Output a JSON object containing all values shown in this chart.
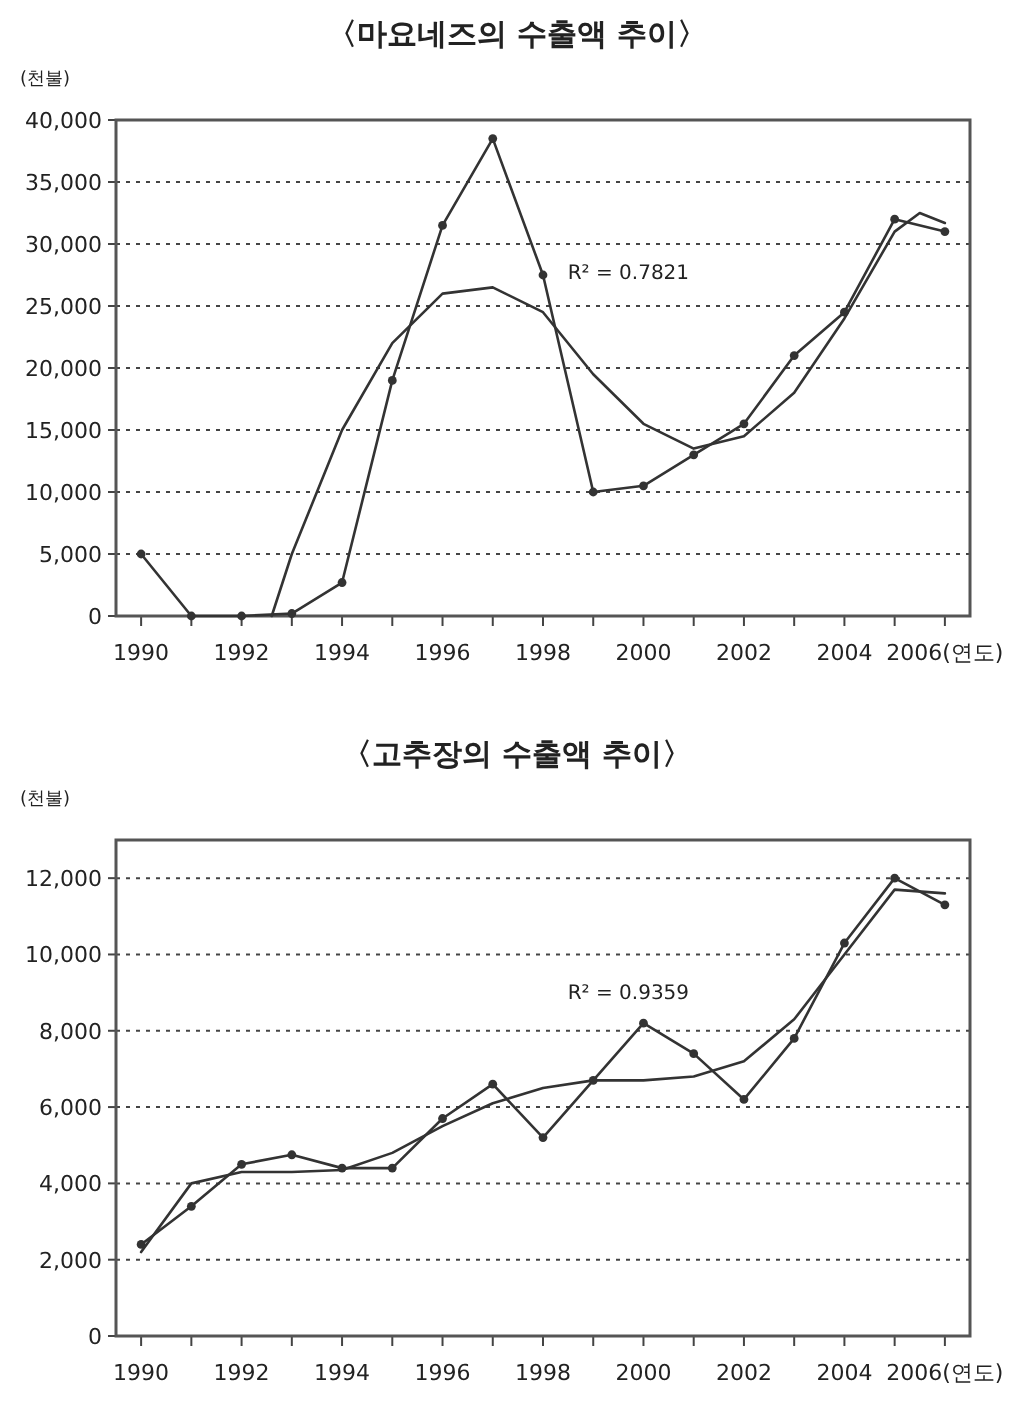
{
  "chart_data": [
    {
      "type": "line",
      "title": "〈마요네즈의 수출액 추이〉",
      "ylabel": "(천불)",
      "x": [
        1990,
        1991,
        1992,
        1993,
        1994,
        1995,
        1996,
        1997,
        1998,
        1999,
        2000,
        2001,
        2002,
        2003,
        2004,
        2005,
        2006
      ],
      "series": [
        {
          "color": "#333333",
          "marker": "circle",
          "values": [
            5000,
            0,
            0,
            200,
            2700,
            19000,
            31500,
            38500,
            27500,
            10000,
            10500,
            13000,
            15500,
            21000,
            24500,
            32000,
            31000
          ]
        },
        {
          "color": "#333333",
          "marker": "none",
          "x": [
            1992.6,
            1993,
            1994,
            1995,
            1996,
            1997,
            1998,
            1999,
            2000,
            2001,
            2002,
            2003,
            2004,
            2005,
            2005.5,
            2006
          ],
          "values": [
            0,
            5000,
            15000,
            22000,
            26000,
            26500,
            24500,
            19500,
            15500,
            13500,
            14500,
            18000,
            24000,
            31000,
            32500,
            31700
          ]
        }
      ],
      "xlim": [
        1989.5,
        2006.5
      ],
      "ylim": [
        0,
        40000
      ],
      "xticks": [
        1990,
        {
          "value": 1991,
          "label": null
        },
        1992,
        {
          "value": 1993,
          "label": null
        },
        1994,
        {
          "value": 1995,
          "label": null
        },
        1996,
        {
          "value": 1997,
          "label": null
        },
        1998,
        {
          "value": 1999,
          "label": null
        },
        2000,
        {
          "value": 2001,
          "label": null
        },
        2002,
        {
          "value": 2003,
          "label": null
        },
        2004,
        {
          "value": 2005,
          "label": null
        },
        {
          "value": 2006,
          "label": "2006(연도)"
        }
      ],
      "yticks": [
        0,
        {
          "value": 5000,
          "label": "5,000"
        },
        {
          "value": 10000,
          "label": "10,000"
        },
        {
          "value": 15000,
          "label": "15,000"
        },
        {
          "value": 20000,
          "label": "20,000"
        },
        {
          "value": 25000,
          "label": "25,000"
        },
        {
          "value": 30000,
          "label": "30,000"
        },
        {
          "value": 35000,
          "label": "35,000"
        },
        {
          "value": 40000,
          "label": "40,000"
        }
      ],
      "grid": "y",
      "line_style": "solid",
      "annotations": [
        "R² = 0.7821"
      ]
    },
    {
      "type": "line",
      "title": "〈고추장의 수출액 추이〉",
      "ylabel": "(천불)",
      "x": [
        1990,
        1991,
        1992,
        1993,
        1994,
        1995,
        1996,
        1997,
        1998,
        1999,
        2000,
        2001,
        2002,
        2003,
        2004,
        2005,
        2006
      ],
      "series": [
        {
          "color": "#333333",
          "marker": "circle",
          "values": [
            2400,
            3400,
            4500,
            4750,
            4400,
            4400,
            5700,
            6600,
            5200,
            6700,
            8200,
            7400,
            6200,
            7800,
            10300,
            12000,
            11300
          ]
        },
        {
          "color": "#333333",
          "marker": "none",
          "values": [
            2200,
            4000,
            4300,
            4300,
            4350,
            4800,
            5500,
            6100,
            6500,
            6700,
            6700,
            6800,
            7200,
            8300,
            10000,
            11700,
            11600
          ]
        }
      ],
      "xlim": [
        1989.5,
        2006.5
      ],
      "ylim": [
        0,
        13000
      ],
      "xticks": [
        1990,
        {
          "value": 1991,
          "label": null
        },
        1992,
        {
          "value": 1993,
          "label": null
        },
        1994,
        {
          "value": 1995,
          "label": null
        },
        1996,
        {
          "value": 1997,
          "label": null
        },
        1998,
        {
          "value": 1999,
          "label": null
        },
        2000,
        {
          "value": 2001,
          "label": null
        },
        2002,
        {
          "value": 2003,
          "label": null
        },
        2004,
        {
          "value": 2005,
          "label": null
        },
        {
          "value": 2006,
          "label": "2006(연도)"
        }
      ],
      "yticks": [
        0,
        {
          "value": 2000,
          "label": "2,000"
        },
        {
          "value": 4000,
          "label": "4,000"
        },
        {
          "value": 6000,
          "label": "6,000"
        },
        {
          "value": 8000,
          "label": "8,000"
        },
        {
          "value": 10000,
          "label": "10,000"
        },
        {
          "value": 12000,
          "label": "12,000"
        }
      ],
      "grid": "y",
      "line_style": "solid",
      "annotations": [
        "R² = 0.9359"
      ]
    }
  ]
}
